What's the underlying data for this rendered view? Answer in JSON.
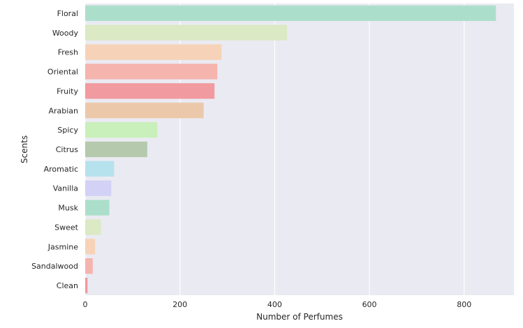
{
  "chart_data": {
    "type": "bar",
    "orientation": "horizontal",
    "title": "",
    "xlabel": "Number of Perfumes",
    "ylabel": "Scents",
    "xlim": [
      0,
      905
    ],
    "xticks": [
      0,
      200,
      400,
      600,
      800
    ],
    "xtick_labels": [
      "0",
      "200",
      "400",
      "600",
      "800"
    ],
    "grid": true,
    "background": "#eaeaf2",
    "categories": [
      "Floral",
      "Woody",
      "Fresh",
      "Oriental",
      "Fruity",
      "Arabian",
      "Spicy",
      "Citrus",
      "Aromatic",
      "Vanilla",
      "Musk",
      "Sweet",
      "Jasmine",
      "Sandalwood",
      "Clean"
    ],
    "values": [
      867,
      426,
      288,
      279,
      273,
      250,
      152,
      131,
      61,
      55,
      51,
      33,
      21,
      16,
      5
    ],
    "colors": [
      "#acdfcb",
      "#dbe9c4",
      "#f6d3b8",
      "#f5b4ae",
      "#f19aa0",
      "#ebc8a9",
      "#c9efba",
      "#b5c9ac",
      "#b6e2ed",
      "#d3d1f5",
      "#acdfcb",
      "#dbe9c4",
      "#f6d3b8",
      "#f5b4ae",
      "#f19aa0"
    ]
  }
}
